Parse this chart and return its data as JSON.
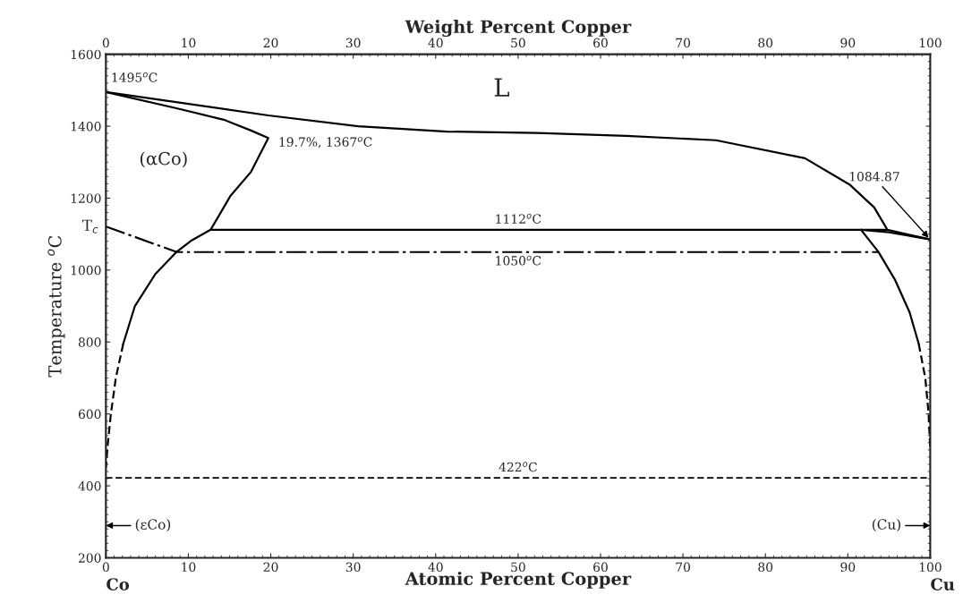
{
  "chart_data": {
    "type": "line",
    "xlabel": "Atomic Percent Copper",
    "x2label": "Weight Percent Copper",
    "ylabel": "Temperature $^{o}$C",
    "xlim": [
      0,
      100
    ],
    "xticks": [
      0,
      10,
      20,
      30,
      40,
      50,
      60,
      70,
      80,
      90,
      100
    ],
    "x2lim": [
      0,
      100
    ],
    "x2ticks": [
      0,
      10,
      20,
      30,
      40,
      50,
      60,
      70,
      80,
      90,
      100
    ],
    "ylim": [
      200,
      1600
    ],
    "yticks": [
      200,
      400,
      600,
      800,
      1000,
      1200,
      1400,
      1600
    ],
    "grid": false,
    "marker": "none",
    "series": [
      {
        "color": "#000000",
        "line_style": "solid",
        "x": [
          0,
          19.7,
          30.6,
          41.4,
          52.3,
          63.1,
          74,
          84.8,
          90.2,
          93.2,
          94.8,
          100
        ],
        "values": [
          1495,
          1430,
          1400,
          1385,
          1381,
          1373,
          1361,
          1311,
          1238,
          1174,
          1112,
          1085
        ]
      },
      {
        "color": "#000000",
        "line_style": "solid",
        "x": [
          0,
          8.9,
          14.3,
          17.6,
          19.7,
          17.6,
          15.1,
          12.7,
          10.3,
          8.6,
          6,
          3.5,
          2.1
        ],
        "values": [
          1495,
          1448,
          1418,
          1388,
          1367,
          1273,
          1206,
          1112,
          1081,
          1051,
          989,
          899,
          795
        ]
      },
      {
        "color": "#000000",
        "line_style": "dashed",
        "x": [
          2.1,
          1.2,
          0.6,
          0.2,
          0
        ],
        "values": [
          795,
          700,
          600,
          510,
          450
        ]
      },
      {
        "color": "#000000",
        "line_style": "solid",
        "x": [
          12.7,
          94.8
        ],
        "values": [
          1112,
          1112
        ]
      },
      {
        "color": "#000000",
        "line_style": "dashdot",
        "x": [
          0,
          8.6,
          93.7
        ],
        "values": [
          1121,
          1050,
          1050
        ]
      },
      {
        "color": "#000000",
        "line_style": "solid",
        "x": [
          91.6,
          93.7,
          95.7,
          97.5,
          98.6
        ],
        "values": [
          1112,
          1051,
          974,
          882,
          795
        ]
      },
      {
        "color": "#000000",
        "line_style": "dashed",
        "x": [
          98.6,
          99.4,
          99.8,
          100
        ],
        "values": [
          795,
          700,
          600,
          500
        ]
      },
      {
        "color": "#000000",
        "line_style": "solid",
        "x": [
          91.6,
          95,
          100
        ],
        "values": [
          1112,
          1105,
          1085
        ]
      }
    ],
    "ref_lines": [
      {
        "axis": "y",
        "value": 422,
        "label": "422$^{o}$C",
        "line_style": "dashed",
        "color": "#000000"
      }
    ],
    "annotations": [
      {
        "text": "1495$^{o}$C",
        "x": 0,
        "y": 1495
      },
      "L",
      "(αCo)",
      {
        "text": "19.7%, 1367$^{o}$C",
        "x": 19.7,
        "y": 1367
      },
      {
        "text": "1084.87",
        "x": 100,
        "y": 1084.87
      },
      {
        "text": "1112$^{o}$C",
        "x": 50,
        "y": 1112
      },
      {
        "text": "1050$^{o}$C",
        "x": 50,
        "y": 1050
      },
      {
        "text": "T$_{c}$",
        "x": 0,
        "y": 1121
      },
      "(εCo)",
      "(Cu)",
      "Co",
      "Cu"
    ]
  }
}
